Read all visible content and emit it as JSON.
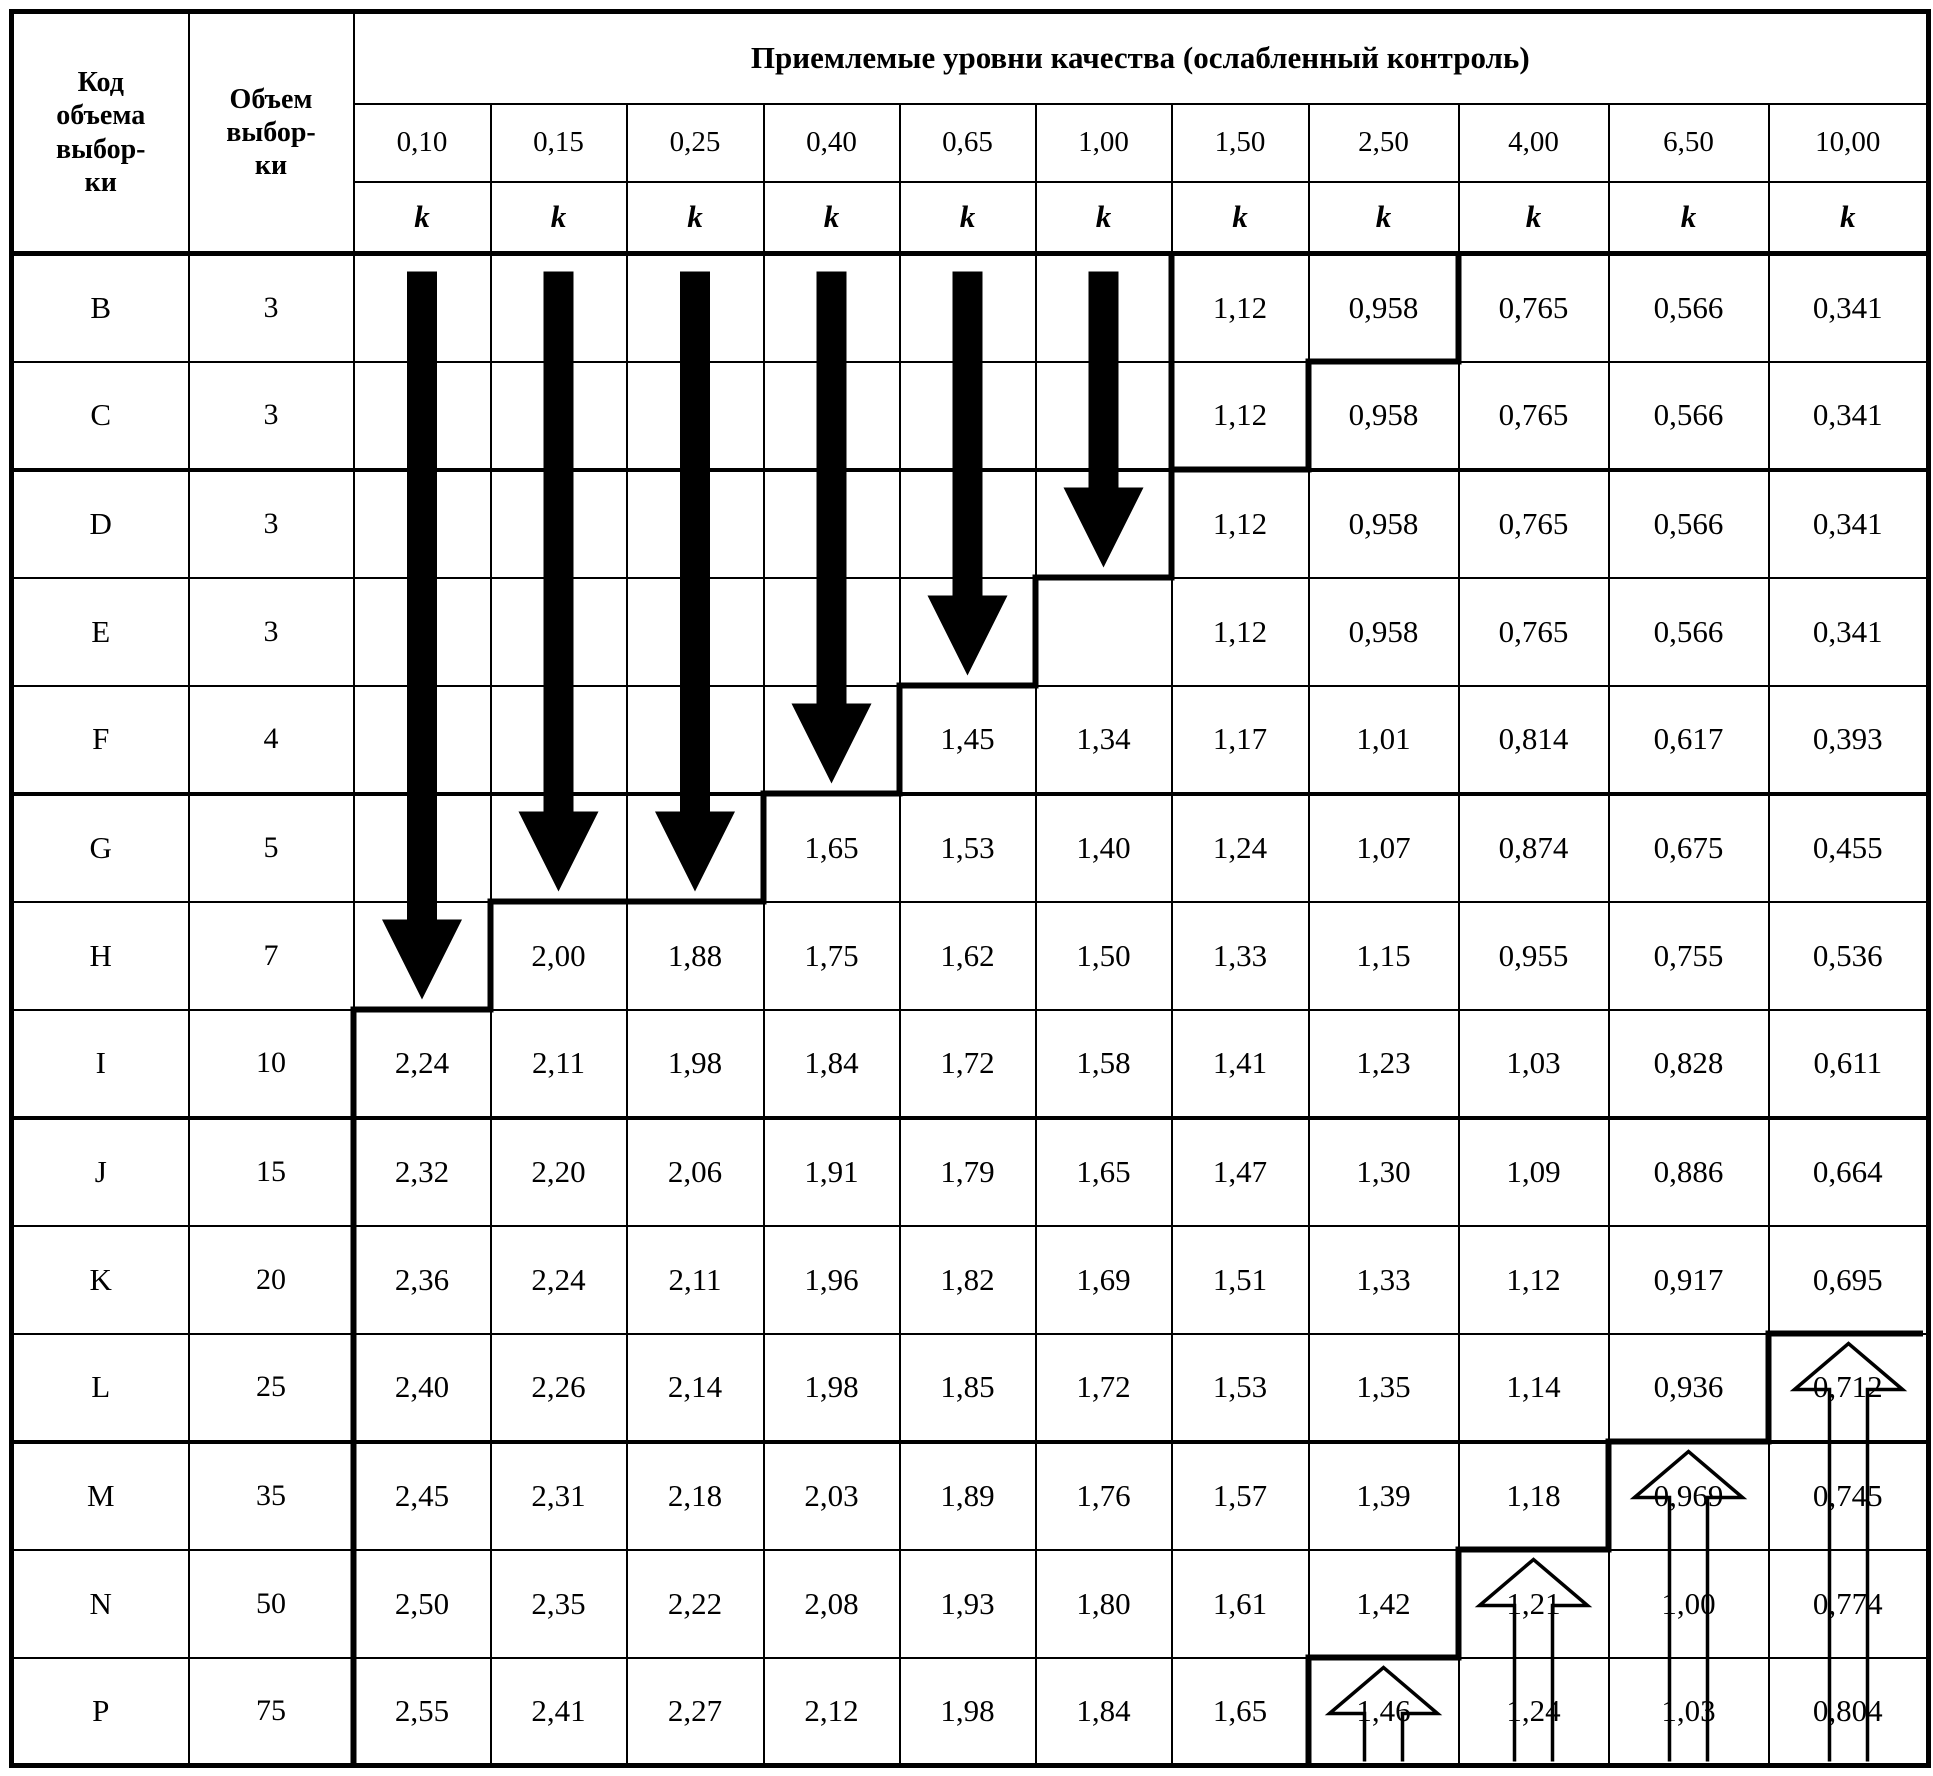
{
  "table": {
    "corner_labels": {
      "code": "Код\nобъема\nвыбор-\nки",
      "size": "Объем\nвыбор-\nки"
    },
    "aql_title": "Приемлемые уровни качества (ослабленный контроль)",
    "aql_columns": [
      "0,10",
      "0,15",
      "0,25",
      "0,40",
      "0,65",
      "1,00",
      "1,50",
      "2,50",
      "4,00",
      "6,50",
      "10,00"
    ],
    "k_label": "k",
    "rows": [
      {
        "code": "B",
        "size": "3",
        "k": [
          null,
          null,
          null,
          null,
          null,
          null,
          "1,12",
          "0,958",
          "0,765",
          "0,566",
          "0,341"
        ]
      },
      {
        "code": "C",
        "size": "3",
        "k": [
          null,
          null,
          null,
          null,
          null,
          null,
          "1,12",
          "0,958",
          "0,765",
          "0,566",
          "0,341"
        ]
      },
      {
        "code": "D",
        "size": "3",
        "k": [
          null,
          null,
          null,
          null,
          null,
          null,
          "1,12",
          "0,958",
          "0,765",
          "0,566",
          "0,341"
        ]
      },
      {
        "code": "E",
        "size": "3",
        "k": [
          null,
          null,
          null,
          null,
          null,
          null,
          "1,12",
          "0,958",
          "0,765",
          "0,566",
          "0,341"
        ]
      },
      {
        "code": "F",
        "size": "4",
        "k": [
          null,
          null,
          null,
          null,
          "1,45",
          "1,34",
          "1,17",
          "1,01",
          "0,814",
          "0,617",
          "0,393"
        ]
      },
      {
        "code": "G",
        "size": "5",
        "k": [
          null,
          null,
          null,
          "1,65",
          "1,53",
          "1,40",
          "1,24",
          "1,07",
          "0,874",
          "0,675",
          "0,455"
        ]
      },
      {
        "code": "H",
        "size": "7",
        "k": [
          null,
          "2,00",
          "1,88",
          "1,75",
          "1,62",
          "1,50",
          "1,33",
          "1,15",
          "0,955",
          "0,755",
          "0,536"
        ]
      },
      {
        "code": "I",
        "size": "10",
        "k": [
          "2,24",
          "2,11",
          "1,98",
          "1,84",
          "1,72",
          "1,58",
          "1,41",
          "1,23",
          "1,03",
          "0,828",
          "0,611"
        ]
      },
      {
        "code": "J",
        "size": "15",
        "k": [
          "2,32",
          "2,20",
          "2,06",
          "1,91",
          "1,79",
          "1,65",
          "1,47",
          "1,30",
          "1,09",
          "0,886",
          "0,664"
        ]
      },
      {
        "code": "K",
        "size": "20",
        "k": [
          "2,36",
          "2,24",
          "2,11",
          "1,96",
          "1,82",
          "1,69",
          "1,51",
          "1,33",
          "1,12",
          "0,917",
          "0,695"
        ]
      },
      {
        "code": "L",
        "size": "25",
        "k": [
          "2,40",
          "2,26",
          "2,14",
          "1,98",
          "1,85",
          "1,72",
          "1,53",
          "1,35",
          "1,14",
          "0,936",
          "0,712"
        ]
      },
      {
        "code": "M",
        "size": "35",
        "k": [
          "2,45",
          "2,31",
          "2,18",
          "2,03",
          "1,89",
          "1,76",
          "1,57",
          "1,39",
          "1,18",
          "0,969",
          "0,745"
        ]
      },
      {
        "code": "N",
        "size": "50",
        "k": [
          "2,50",
          "2,35",
          "2,22",
          "2,08",
          "1,93",
          "1,80",
          "1,61",
          "1,42",
          "1,21",
          "1,00",
          "0,774"
        ]
      },
      {
        "code": "P",
        "size": "75",
        "k": [
          "2,55",
          "2,41",
          "2,27",
          "2,12",
          "1,98",
          "1,84",
          "1,65",
          "1,46",
          "1,24",
          "1,03",
          "0,804"
        ]
      }
    ],
    "group_start_indices": [
      2,
      5,
      8,
      11
    ],
    "down_arrows": [
      {
        "col": 0,
        "from_row": 0,
        "to_row": 6
      },
      {
        "col": 1,
        "from_row": 0,
        "to_row": 5
      },
      {
        "col": 2,
        "from_row": 0,
        "to_row": 5
      },
      {
        "col": 3,
        "from_row": 0,
        "to_row": 4
      },
      {
        "col": 4,
        "from_row": 0,
        "to_row": 3
      },
      {
        "col": 5,
        "from_row": 0,
        "to_row": 2
      }
    ],
    "up_arrows": [
      {
        "col": 7,
        "tip_row": 13
      },
      {
        "col": 8,
        "tip_row": 12
      },
      {
        "col": 9,
        "tip_row": 11
      },
      {
        "col": 10,
        "tip_row": 10
      }
    ],
    "boundaries": [
      {
        "name": "left-step-boundary",
        "points": [
          [
            6,
            0
          ],
          [
            6,
            3
          ],
          [
            5,
            3
          ],
          [
            5,
            4
          ],
          [
            4,
            4
          ],
          [
            4,
            5
          ],
          [
            3,
            5
          ],
          [
            3,
            6
          ],
          [
            1,
            6
          ],
          [
            1,
            7
          ],
          [
            0,
            7
          ],
          [
            0,
            14
          ]
        ]
      },
      {
        "name": "upper-right-step-boundary",
        "points": [
          [
            8,
            0
          ],
          [
            8,
            1
          ],
          [
            7,
            1
          ],
          [
            7,
            2
          ],
          [
            6,
            2
          ]
        ]
      },
      {
        "name": "lower-right-step-boundary",
        "points": [
          [
            11,
            10
          ],
          [
            10,
            10
          ],
          [
            10,
            11
          ],
          [
            9,
            11
          ],
          [
            9,
            12
          ],
          [
            8,
            12
          ],
          [
            8,
            13
          ],
          [
            7,
            13
          ],
          [
            7,
            14
          ]
        ]
      }
    ],
    "colors": {
      "ink": "#000000",
      "paper": "#ffffff"
    }
  }
}
